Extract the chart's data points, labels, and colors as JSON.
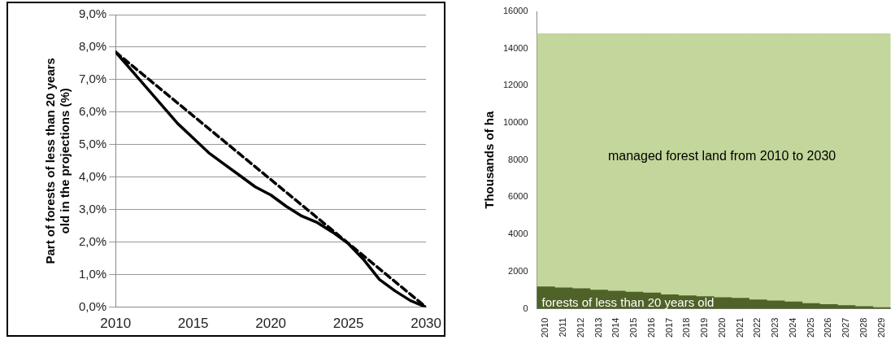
{
  "chart_data": [
    {
      "type": "line",
      "ylabel": "Part of forests of less than 20 years old in the projections (%)",
      "xlim": [
        2010,
        2030
      ],
      "xticks": [
        2010,
        2015,
        2020,
        2025,
        2030
      ],
      "ylim": [
        0,
        9
      ],
      "yticks": [
        {
          "value": 0,
          "label": "0,0%"
        },
        {
          "value": 1,
          "label": "1,0%"
        },
        {
          "value": 2,
          "label": "2,0%"
        },
        {
          "value": 3,
          "label": "3,0%"
        },
        {
          "value": 4,
          "label": "4,0%"
        },
        {
          "value": 5,
          "label": "5,0%"
        },
        {
          "value": 6,
          "label": "6,0%"
        },
        {
          "value": 7,
          "label": "7,0%"
        },
        {
          "value": 8,
          "label": "8,0%"
        },
        {
          "value": 9,
          "label": "9,0%"
        }
      ],
      "grid": "y",
      "legend": false,
      "marker": "none",
      "series": [
        {
          "color": "#000000",
          "line_style": "solid",
          "x": [
            2010,
            2011,
            2012,
            2013,
            2014,
            2015,
            2016,
            2017,
            2018,
            2019,
            2020,
            2021,
            2022,
            2023,
            2024,
            2025,
            2026,
            2027,
            2028,
            2029,
            2030
          ],
          "values": [
            7.85,
            7.3,
            6.75,
            6.2,
            5.65,
            5.2,
            4.75,
            4.4,
            4.05,
            3.7,
            3.45,
            3.1,
            2.8,
            2.6,
            2.3,
            1.95,
            1.45,
            0.85,
            0.5,
            0.2,
            0
          ]
        },
        {
          "color": "#000000",
          "line_style": "dashed",
          "x": [
            2010,
            2030
          ],
          "values": [
            7.85,
            0
          ]
        }
      ]
    },
    {
      "type": "bar",
      "stacked": true,
      "ylabel": "Thousands of ha",
      "categories": [
        "2010",
        "2011",
        "2012",
        "2013",
        "2014",
        "2015",
        "2016",
        "2017",
        "2018",
        "2019",
        "2020",
        "2021",
        "2022",
        "2023",
        "2024",
        "2025",
        "2026",
        "2027",
        "2028",
        "2029"
      ],
      "ylim": [
        0,
        16000
      ],
      "yticks": [
        0,
        2000,
        4000,
        6000,
        8000,
        10000,
        12000,
        14000,
        16000
      ],
      "grid": false,
      "legend": false,
      "series": [
        {
          "name": "forests of less than 20 years old",
          "color": "#4f6228",
          "values": [
            1180,
            1130,
            1080,
            1000,
            950,
            900,
            850,
            750,
            700,
            650,
            600,
            570,
            480,
            430,
            370,
            280,
            230,
            170,
            120,
            60
          ]
        },
        {
          "name": "managed forest land from 2010 to 2030",
          "color": "#c3d69b",
          "values": [
            13620,
            13670,
            13720,
            13800,
            13850,
            13900,
            13950,
            14050,
            14100,
            14150,
            14200,
            14230,
            14320,
            14370,
            14430,
            14520,
            14570,
            14630,
            14680,
            14740
          ]
        }
      ]
    }
  ]
}
